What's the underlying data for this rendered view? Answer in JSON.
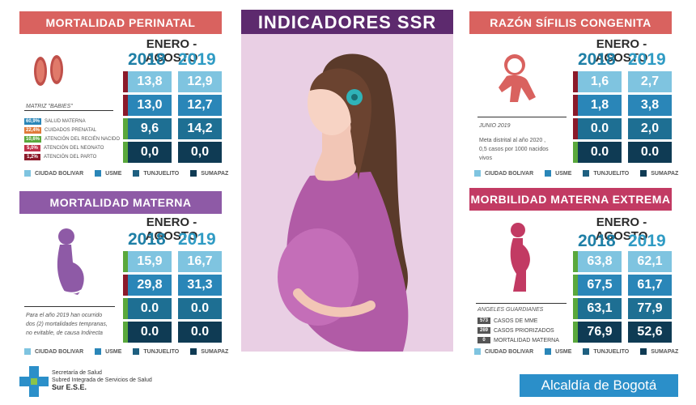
{
  "title": "INDICADORES SSR",
  "period": "ENERO - AGOSTO",
  "years": [
    "2018",
    "2019"
  ],
  "colors": {
    "ciudad_bolivar": "#7fc4e0",
    "usme": "#2a86b8",
    "tunjuelito": "#1e5f80",
    "sumapaz": "#0f3b54",
    "stripe_red": "#8b1a2a",
    "stripe_green": "#5aa83c"
  },
  "legend": [
    "CIUDAD BOLIVAR",
    "USME",
    "TUNJUELITO",
    "SUMAPAZ"
  ],
  "perinatal": {
    "title": "MORTALIDAD PERINATAL",
    "rows": [
      {
        "v2018": "13,8",
        "v2019": "12,9",
        "stripe": "red"
      },
      {
        "v2018": "13,0",
        "v2019": "12,7",
        "stripe": "red"
      },
      {
        "v2018": "9,6",
        "v2019": "14,2",
        "stripe": "green"
      },
      {
        "v2018": "0,0",
        "v2019": "0,0",
        "stripe": "green"
      }
    ],
    "matrix_title": "MATRIZ \"BABIES\"",
    "matrix": [
      {
        "pct": "60,9%",
        "label": "SALUD MATERNA",
        "color": "#2a86b8"
      },
      {
        "pct": "22,4%",
        "label": "CUIDADOS PRENATAL",
        "color": "#e07a3a"
      },
      {
        "pct": "10,6%",
        "label": "ATENCIÓN DEL RECIÉN NACIDO",
        "color": "#5aa83c"
      },
      {
        "pct": "5,0%",
        "label": "ATENCIÓN DEL NEONATO",
        "color": "#c0304a"
      },
      {
        "pct": "1,2%",
        "label": "ATENCIÓN DEL PARTO",
        "color": "#8b1a2a"
      }
    ]
  },
  "materna": {
    "title": "MORTALIDAD MATERNA",
    "rows": [
      {
        "v2018": "15,9",
        "v2019": "16,7",
        "stripe": "green"
      },
      {
        "v2018": "29,8",
        "v2019": "31,3",
        "stripe": "red"
      },
      {
        "v2018": "0.0",
        "v2019": "0.0",
        "stripe": "green"
      },
      {
        "v2018": "0.0",
        "v2019": "0.0",
        "stripe": "green"
      }
    ],
    "note": [
      "Para el año 2019 han ocurrido",
      "dos (2)  mortalidades tempranas,",
      "no evitable, de causa Indirecta"
    ]
  },
  "sifilis": {
    "title": "RAZÓN SÍFILIS CONGENITA",
    "rows": [
      {
        "v2018": "1,6",
        "v2019": "2,7",
        "stripe": "red"
      },
      {
        "v2018": "1,8",
        "v2019": "3,8",
        "stripe": "red"
      },
      {
        "v2018": "0.0",
        "v2019": "2,0",
        "stripe": "red"
      },
      {
        "v2018": "0.0",
        "v2019": "0.0",
        "stripe": "green"
      }
    ],
    "note_title": "JUNIO 2019",
    "note": [
      "Meta distrital al año 2020 ,",
      "0,5 casos por 1000 nacidos",
      "vivos"
    ]
  },
  "morbilidad": {
    "title": "MORBILIDAD MATERNA EXTREMA",
    "rows": [
      {
        "v2018": "63,8",
        "v2019": "62,1",
        "stripe": "green"
      },
      {
        "v2018": "67,5",
        "v2019": "61,7",
        "stripe": "green"
      },
      {
        "v2018": "63,1",
        "v2019": "77,9",
        "stripe": "green"
      },
      {
        "v2018": "76,9",
        "v2019": "52,6",
        "stripe": "green"
      }
    ],
    "note_title": "ANGELES GUARDIANES",
    "counts": [
      {
        "n": "573",
        "label": "CASOS DE MME"
      },
      {
        "n": "269",
        "label": "CASOS PRIORIZADOS"
      },
      {
        "n": "0",
        "label": "MORTALIDAD MATERNA"
      }
    ]
  },
  "footer": {
    "org1": "Secretaría de Salud",
    "org2": "Subred Integrada de Servicios de Salud",
    "org3": "Sur E.S.E.",
    "alcaldia": "Alcaldía de Bogotá"
  }
}
